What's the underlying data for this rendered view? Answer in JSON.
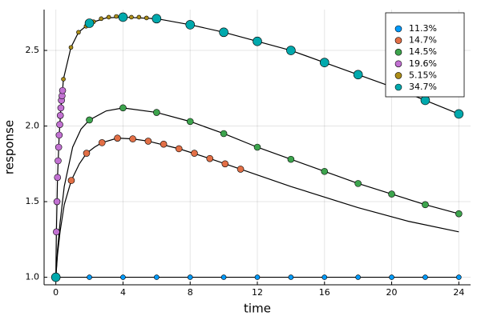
{
  "chart_data": {
    "type": "scatter",
    "xlabel": "time",
    "ylabel": "response",
    "xlim": [
      -0.7,
      24.7
    ],
    "ylim": [
      0.95,
      2.77
    ],
    "xticks": [
      0,
      4,
      8,
      12,
      16,
      20,
      24
    ],
    "yticks": [
      {
        "value": 1,
        "label": "1.0"
      },
      1.5,
      {
        "value": 2,
        "label": "2.0"
      },
      2.5
    ],
    "grid": true,
    "legend": "upper right",
    "series": [
      {
        "name": "11.3%",
        "color": "#009afa",
        "marker_size": 3,
        "x": [
          0,
          2,
          4,
          6,
          8,
          10,
          12,
          14,
          16,
          18,
          20,
          22,
          24
        ],
        "values": [
          1,
          1,
          1,
          1,
          1,
          1,
          1,
          1,
          1,
          1,
          1,
          1,
          1
        ]
      },
      {
        "name": "14.7%",
        "color": "#e26f46",
        "marker_size": 4,
        "x": [
          0.92,
          1.83,
          2.75,
          3.67,
          4.58,
          5.5,
          6.42,
          7.33,
          8.25,
          9.17,
          10.08,
          11
        ],
        "values": [
          1.64,
          1.82,
          1.89,
          1.92,
          1.915,
          1.9,
          1.88,
          1.85,
          1.82,
          1.785,
          1.75,
          1.715
        ]
      },
      {
        "name": "14.5%",
        "color": "#3da44d",
        "marker_size": 4,
        "x": [
          2,
          4,
          6,
          8,
          10,
          12,
          14,
          16,
          18,
          20,
          22,
          24
        ],
        "values": [
          2.04,
          2.12,
          2.09,
          2.03,
          1.95,
          1.86,
          1.78,
          1.7,
          1.62,
          1.55,
          1.48,
          1.42
        ]
      },
      {
        "name": "19.6%",
        "color": "#c271d2",
        "marker_size": 4,
        "x": [
          0.033,
          0.067,
          0.1,
          0.133,
          0.167,
          0.2,
          0.233,
          0.267,
          0.3,
          0.333,
          0.367,
          0.4
        ],
        "values": [
          1.3,
          1.5,
          1.66,
          1.77,
          1.86,
          1.94,
          2.01,
          2.07,
          2.12,
          2.17,
          2.2,
          2.235
        ]
      },
      {
        "name": "5.15%",
        "color": "#ac8d18",
        "marker_size": 2.5,
        "x": [
          0.45,
          0.9,
          1.35,
          1.8,
          2.25,
          2.7,
          3.15,
          3.6,
          4.05,
          4.5,
          4.95,
          5.4
        ],
        "values": [
          2.31,
          2.52,
          2.62,
          2.66,
          2.69,
          2.71,
          2.72,
          2.725,
          2.73,
          2.72,
          2.72,
          2.715
        ]
      },
      {
        "name": "34.7%",
        "color": "#00a9ad",
        "marker_size": 5.5,
        "x": [
          0,
          2,
          4,
          6,
          8,
          10,
          12,
          14,
          16,
          18,
          20,
          22,
          24
        ],
        "values": [
          1,
          2.68,
          2.72,
          2.71,
          2.67,
          2.62,
          2.56,
          2.5,
          2.42,
          2.34,
          2.26,
          2.17,
          2.08
        ]
      }
    ],
    "fits": [
      {
        "color": "#000000",
        "x": [
          0,
          24
        ],
        "values": [
          1,
          1
        ]
      },
      {
        "color": "#000000",
        "x": [
          0,
          0.1,
          0.25,
          0.5,
          0.92,
          1.4,
          1.83,
          2.3,
          2.75,
          3.67,
          4.58,
          5.5,
          7.33,
          9.17,
          11,
          14,
          18,
          21,
          24
        ],
        "values": [
          1,
          1.15,
          1.3,
          1.48,
          1.64,
          1.75,
          1.82,
          1.86,
          1.89,
          1.92,
          1.915,
          1.9,
          1.85,
          1.785,
          1.715,
          1.6,
          1.46,
          1.37,
          1.3
        ]
      },
      {
        "color": "#000000",
        "x": [
          0,
          0.1,
          0.25,
          0.5,
          1,
          1.5,
          2,
          3,
          4,
          6,
          8,
          10,
          12,
          14,
          16,
          18,
          20,
          22,
          24
        ],
        "values": [
          1,
          1.18,
          1.36,
          1.6,
          1.86,
          1.98,
          2.04,
          2.1,
          2.12,
          2.09,
          2.03,
          1.95,
          1.86,
          1.78,
          1.7,
          1.62,
          1.55,
          1.48,
          1.42
        ]
      },
      {
        "color": "#000000",
        "x": [
          0,
          0.033,
          0.1,
          0.2,
          0.3,
          0.4,
          0.45,
          0.9,
          1.35,
          2,
          3,
          4,
          6,
          8,
          10,
          12,
          14,
          16,
          18,
          20,
          22,
          24
        ],
        "values": [
          1,
          1.3,
          1.66,
          1.94,
          2.12,
          2.235,
          2.31,
          2.52,
          2.62,
          2.68,
          2.715,
          2.72,
          2.71,
          2.67,
          2.62,
          2.56,
          2.5,
          2.42,
          2.34,
          2.26,
          2.17,
          2.08
        ]
      }
    ]
  }
}
